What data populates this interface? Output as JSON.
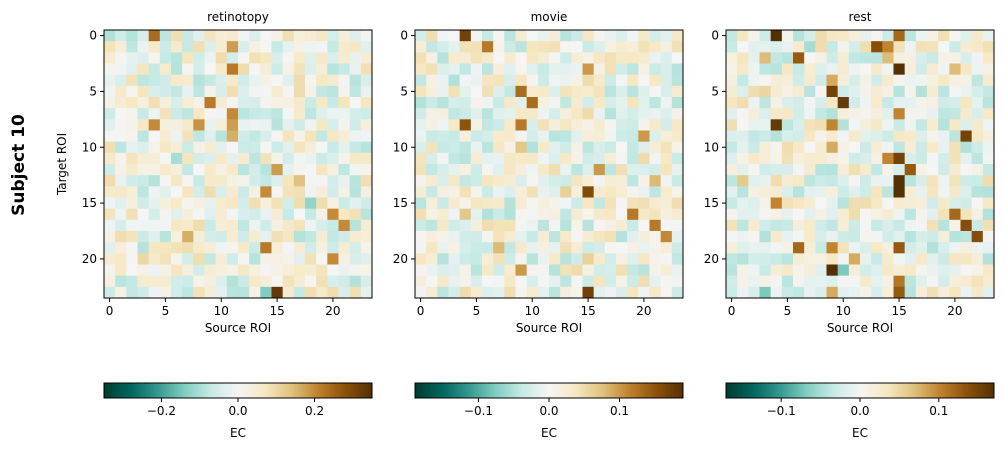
{
  "figure": {
    "row_label": "Subject 10"
  },
  "chart_data": [
    {
      "type": "heatmap",
      "title": "retinotopy",
      "xlabel": "Source ROI",
      "ylabel": "Target ROI",
      "n": 24,
      "xticks": [
        0,
        5,
        10,
        15,
        20
      ],
      "yticks": [
        0,
        5,
        10,
        15,
        20
      ],
      "cells": [
        [
          0,
          4,
          0.24
        ],
        [
          2,
          0,
          0.05
        ],
        [
          1,
          11,
          0.18
        ],
        [
          3,
          11,
          0.22
        ],
        [
          4,
          3,
          -0.08
        ],
        [
          5,
          15,
          0.05
        ],
        [
          6,
          9,
          0.22
        ],
        [
          7,
          11,
          0.2
        ],
        [
          8,
          4,
          0.2
        ],
        [
          8,
          8,
          0.19
        ],
        [
          8,
          11,
          0.18
        ],
        [
          9,
          11,
          0.16
        ],
        [
          10,
          1,
          -0.08
        ],
        [
          11,
          6,
          -0.1
        ],
        [
          12,
          15,
          0.18
        ],
        [
          13,
          17,
          0.14
        ],
        [
          14,
          14,
          0.2
        ],
        [
          15,
          18,
          -0.12
        ],
        [
          16,
          20,
          0.2
        ],
        [
          17,
          17,
          0.08
        ],
        [
          17,
          21,
          0.2
        ],
        [
          18,
          7,
          0.16
        ],
        [
          19,
          14,
          0.22
        ],
        [
          20,
          20,
          0.2
        ],
        [
          20,
          3,
          0.1
        ],
        [
          21,
          9,
          0.05
        ],
        [
          22,
          16,
          0.08
        ],
        [
          23,
          15,
          0.33
        ],
        [
          23,
          14,
          -0.14
        ],
        [
          23,
          0,
          -0.06
        ],
        [
          4,
          19,
          0.07
        ],
        [
          9,
          5,
          0.05
        ],
        [
          15,
          12,
          -0.05
        ],
        [
          3,
          4,
          -0.07
        ],
        [
          6,
          2,
          0.07
        ],
        [
          12,
          5,
          0.06
        ],
        [
          18,
          13,
          0.05
        ],
        [
          22,
          4,
          0.05
        ]
      ],
      "colorbar": {
        "label": "EC",
        "range": [
          -0.35,
          0.35
        ],
        "ticks": [
          -0.2,
          0.0,
          0.2
        ],
        "tick_labels": [
          "−0.2",
          "0.0",
          "0.2"
        ]
      }
    },
    {
      "type": "heatmap",
      "title": "movie",
      "xlabel": "Source ROI",
      "ylabel": "",
      "n": 24,
      "xticks": [
        0,
        5,
        10,
        15,
        20
      ],
      "yticks": [
        0,
        5,
        10,
        15,
        20
      ],
      "cells": [
        [
          0,
          4,
          0.17
        ],
        [
          1,
          6,
          0.12
        ],
        [
          3,
          15,
          0.1
        ],
        [
          4,
          3,
          -0.05
        ],
        [
          5,
          9,
          0.13
        ],
        [
          6,
          10,
          0.13
        ],
        [
          8,
          4,
          0.15
        ],
        [
          8,
          9,
          0.12
        ],
        [
          9,
          20,
          0.1
        ],
        [
          8,
          6,
          -0.04
        ],
        [
          10,
          9,
          0.07
        ],
        [
          11,
          20,
          0.05
        ],
        [
          12,
          16,
          0.1
        ],
        [
          13,
          21,
          0.08
        ],
        [
          14,
          15,
          0.16
        ],
        [
          14,
          13,
          0.06
        ],
        [
          16,
          4,
          0.07
        ],
        [
          16,
          19,
          0.12
        ],
        [
          17,
          21,
          0.12
        ],
        [
          18,
          22,
          0.11
        ],
        [
          19,
          7,
          0.08
        ],
        [
          21,
          9,
          0.1
        ],
        [
          23,
          15,
          0.17
        ],
        [
          23,
          4,
          0.05
        ],
        [
          1,
          1,
          -0.04
        ],
        [
          7,
          0,
          -0.03
        ],
        [
          11,
          3,
          -0.04
        ],
        [
          18,
          5,
          -0.03
        ],
        [
          4,
          15,
          0.05
        ],
        [
          7,
          15,
          0.05
        ],
        [
          20,
          15,
          0.06
        ],
        [
          21,
          14,
          0.05
        ],
        [
          22,
          16,
          0.04
        ]
      ],
      "colorbar": {
        "label": "EC",
        "range": [
          -0.19,
          0.19
        ],
        "ticks": [
          -0.1,
          0.0,
          0.1
        ],
        "tick_labels": [
          "−0.1",
          "0.0",
          "0.1"
        ]
      }
    },
    {
      "type": "heatmap",
      "title": "rest",
      "xlabel": "Source ROI",
      "ylabel": "",
      "n": 24,
      "xticks": [
        0,
        5,
        10,
        15,
        20
      ],
      "yticks": [
        0,
        5,
        10,
        15,
        20
      ],
      "cells": [
        [
          0,
          4,
          0.17
        ],
        [
          0,
          15,
          0.12
        ],
        [
          1,
          13,
          0.14
        ],
        [
          1,
          14,
          0.1
        ],
        [
          1,
          7,
          -0.05
        ],
        [
          2,
          6,
          0.13
        ],
        [
          2,
          14,
          0.07
        ],
        [
          3,
          15,
          0.17
        ],
        [
          4,
          9,
          0.08
        ],
        [
          5,
          9,
          0.15
        ],
        [
          6,
          10,
          0.16
        ],
        [
          7,
          15,
          0.1
        ],
        [
          8,
          4,
          0.16
        ],
        [
          8,
          9,
          0.1
        ],
        [
          9,
          21,
          0.15
        ],
        [
          10,
          9,
          0.08
        ],
        [
          11,
          14,
          0.1
        ],
        [
          11,
          15,
          0.15
        ],
        [
          12,
          16,
          0.13
        ],
        [
          13,
          15,
          0.17
        ],
        [
          14,
          15,
          0.17
        ],
        [
          15,
          4,
          0.1
        ],
        [
          16,
          20,
          0.12
        ],
        [
          17,
          21,
          0.14
        ],
        [
          18,
          22,
          0.14
        ],
        [
          19,
          6,
          0.12
        ],
        [
          19,
          9,
          0.1
        ],
        [
          19,
          15,
          0.13
        ],
        [
          20,
          11,
          0.08
        ],
        [
          21,
          9,
          0.17
        ],
        [
          21,
          10,
          -0.07
        ],
        [
          22,
          15,
          0.11
        ],
        [
          23,
          15,
          0.13
        ],
        [
          23,
          3,
          -0.07
        ],
        [
          23,
          9,
          0.08
        ],
        [
          2,
          3,
          0.07
        ],
        [
          5,
          3,
          0.05
        ],
        [
          13,
          1,
          0.06
        ],
        [
          3,
          20,
          0.07
        ]
      ],
      "colorbar": {
        "label": "EC",
        "range": [
          -0.17,
          0.17
        ],
        "ticks": [
          -0.1,
          0.0,
          0.1
        ],
        "tick_labels": [
          "−0.1",
          "0.0",
          "0.1"
        ]
      }
    }
  ]
}
